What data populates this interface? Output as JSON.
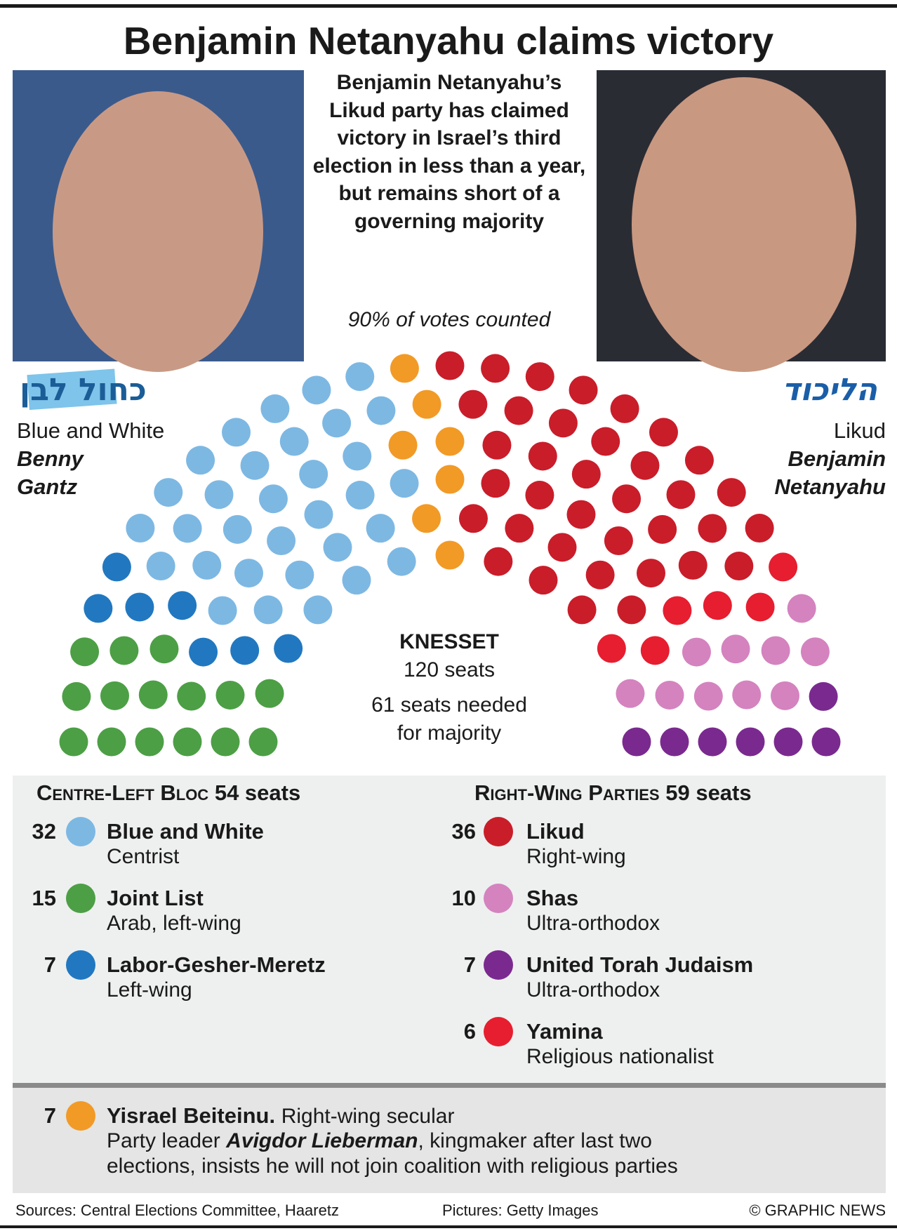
{
  "title": "Benjamin Netanyahu claims victory",
  "intro": "Benjamin Netanyahu’s Likud party has claimed victory in Israel’s third election in less than a year, but remains short of a governing majority",
  "note": "90% of votes counted",
  "left_leader": {
    "logo": "כחול לבן",
    "party": "Blue and White",
    "name_line1": "Benny",
    "name_line2": "Gantz"
  },
  "right_leader": {
    "logo": "הליכוד",
    "party": "Likud",
    "name_line1": "Benjamin",
    "name_line2": "Netanyahu"
  },
  "chart_data": {
    "type": "parliament",
    "title": "KNESSET",
    "subtitle": "120 seats",
    "majority_line1": "61 seats needed",
    "majority_line2": "for majority",
    "blocs": [
      {
        "name": "Centre-Left Bloc",
        "seats_label": "54 seats",
        "parties": [
          {
            "name": "Blue and White",
            "label": "Centrist",
            "seats": 32,
            "color": "#7db8e3"
          },
          {
            "name": "Joint List",
            "label": "Arab, left-wing",
            "seats": 15,
            "color": "#4c9f45"
          },
          {
            "name": "Labor-Gesher-Meretz",
            "label": "Left-wing",
            "seats": 7,
            "color": "#2178c0"
          }
        ]
      },
      {
        "name": "Right-Wing Parties",
        "seats_label": "59 seats",
        "parties": [
          {
            "name": "Likud",
            "label": "Right-wing",
            "seats": 36,
            "color": "#c91d2a"
          },
          {
            "name": "Shas",
            "label": "Ultra-orthodox",
            "seats": 10,
            "color": "#d483bf"
          },
          {
            "name": "United Torah Judaism",
            "label": "Ultra-orthodox",
            "seats": 7,
            "color": "#7a2a8f"
          },
          {
            "name": "Yamina",
            "label": "Religious nationalist",
            "seats": 6,
            "color": "#e61e30"
          }
        ]
      }
    ],
    "other": {
      "name": "Yisrael Beiteinu.",
      "label": "Right-wing secular",
      "seats": 7,
      "color": "#f29a26",
      "desc_part1": "Party leader ",
      "desc_leader": "Avigdor Lieberman",
      "desc_part2": ", kingmaker after last two",
      "desc_line2": "elections, insists he will not join coalition with religious parties"
    }
  },
  "footer": {
    "sources": "Sources: Central Elections Committee, Haaretz",
    "pictures": "Pictures: Getty Images",
    "credit": "© GRAPHIC NEWS"
  }
}
